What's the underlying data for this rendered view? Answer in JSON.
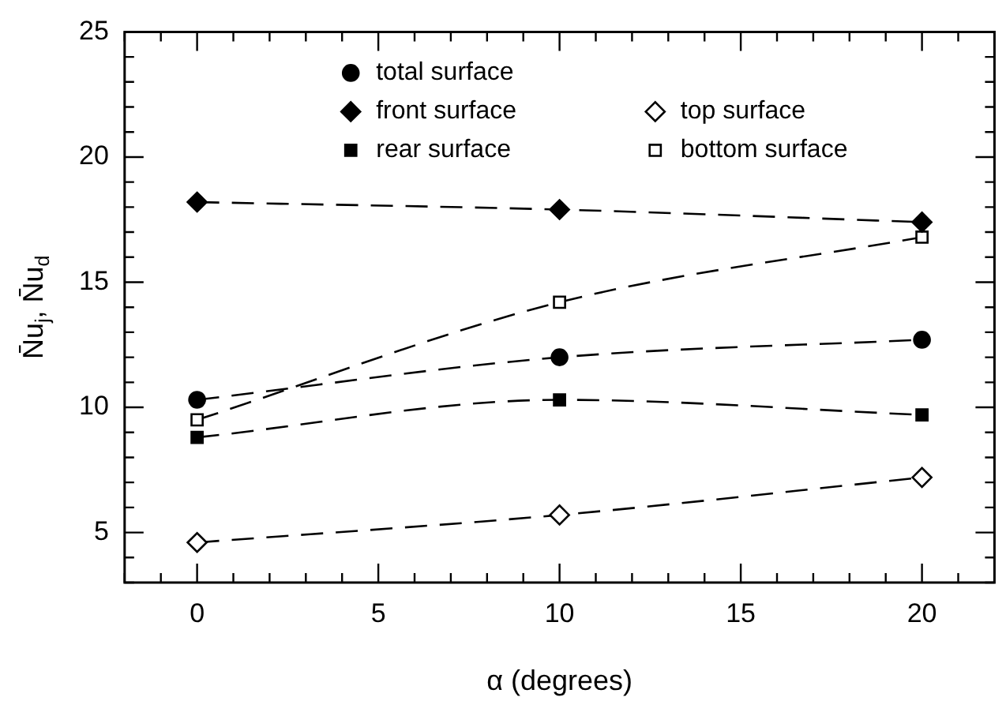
{
  "chart_data": {
    "type": "line",
    "xlabel": "α (degrees)",
    "ylabel": "N̄u$_{j}$, N̄u$_{d}$",
    "x": [
      0,
      10,
      20
    ],
    "series": [
      {
        "name": "total surface",
        "color": "#000000",
        "marker": "circle",
        "values": [
          10.3,
          12.0,
          12.7
        ]
      },
      {
        "name": "front surface",
        "color": "#000000",
        "marker": "diamond",
        "values": [
          18.2,
          17.9,
          17.4
        ]
      },
      {
        "name": "rear surface",
        "color": "#000000",
        "marker": "square",
        "values": [
          8.8,
          10.3,
          9.7
        ]
      },
      {
        "name": "top surface",
        "color": "#000000",
        "marker": "diamond-open",
        "values": [
          4.6,
          5.7,
          7.2
        ]
      },
      {
        "name": "bottom surface",
        "color": "#000000",
        "marker": "square-open",
        "values": [
          9.5,
          14.2,
          16.8
        ]
      }
    ],
    "xlim": [
      -2,
      22
    ],
    "xticks": [
      {
        "value": -2,
        "label": null
      },
      {
        "value": -1,
        "label": null
      },
      0,
      {
        "value": 1,
        "label": null
      },
      {
        "value": 2,
        "label": null
      },
      {
        "value": 3,
        "label": null
      },
      {
        "value": 4,
        "label": null
      },
      5,
      {
        "value": 6,
        "label": null
      },
      {
        "value": 7,
        "label": null
      },
      {
        "value": 8,
        "label": null
      },
      {
        "value": 9,
        "label": null
      },
      10,
      {
        "value": 11,
        "label": null
      },
      {
        "value": 12,
        "label": null
      },
      {
        "value": 13,
        "label": null
      },
      {
        "value": 14,
        "label": null
      },
      15,
      {
        "value": 16,
        "label": null
      },
      {
        "value": 17,
        "label": null
      },
      {
        "value": 18,
        "label": null
      },
      {
        "value": 19,
        "label": null
      },
      20,
      {
        "value": 21,
        "label": null
      }
    ],
    "ylim": [
      3,
      25
    ],
    "yticks": [
      {
        "value": 3,
        "label": null
      },
      {
        "value": 4,
        "label": null
      },
      5,
      {
        "value": 6,
        "label": null
      },
      {
        "value": 7,
        "label": null
      },
      {
        "value": 8,
        "label": null
      },
      {
        "value": 9,
        "label": null
      },
      10,
      {
        "value": 11,
        "label": null
      },
      {
        "value": 12,
        "label": null
      },
      {
        "value": 13,
        "label": null
      },
      {
        "value": 14,
        "label": null
      },
      15,
      {
        "value": 16,
        "label": null
      },
      {
        "value": 17,
        "label": null
      },
      {
        "value": 18,
        "label": null
      },
      {
        "value": 19,
        "label": null
      },
      20,
      {
        "value": 21,
        "label": null
      },
      {
        "value": 22,
        "label": null
      },
      {
        "value": 23,
        "label": null
      },
      {
        "value": 24,
        "label": null
      },
      25
    ],
    "line_style": "dashed",
    "grid": false,
    "legend": "top"
  }
}
